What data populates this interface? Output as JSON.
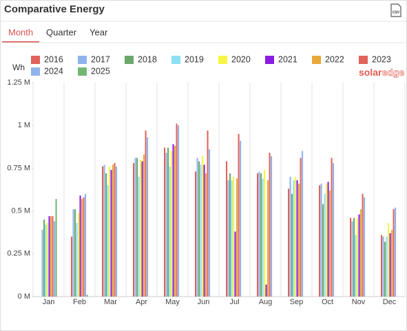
{
  "export_button": "CSV",
  "tabs": [
    "Month",
    "Quarter",
    "Year"
  ],
  "active_tab": 0,
  "logo": [
    "solar",
    "edge"
  ],
  "chart_data": {
    "type": "bar",
    "title": "Comparative Energy",
    "y_label": "Wh",
    "categories": [
      "Jan",
      "Feb",
      "Mar",
      "Apr",
      "May",
      "Jun",
      "Jul",
      "Aug",
      "Sep",
      "Oct",
      "Nov",
      "Dec"
    ],
    "series": [
      {
        "name": "2016",
        "color": "#e0635b",
        "values": [
          null,
          0.35,
          0.76,
          0.78,
          0.87,
          0.73,
          0.79,
          0.72,
          0.63,
          0.65,
          0.46,
          0.36
        ]
      },
      {
        "name": "2017",
        "color": "#8fb3eb",
        "values": [
          0.39,
          0.51,
          0.77,
          0.81,
          0.84,
          0.81,
          0.68,
          0.73,
          0.7,
          0.66,
          0.44,
          0.35
        ]
      },
      {
        "name": "2018",
        "color": "#6aa96b",
        "values": [
          0.45,
          0.51,
          0.72,
          0.81,
          0.87,
          0.79,
          0.72,
          0.72,
          0.6,
          0.54,
          0.46,
          0.32
        ]
      },
      {
        "name": "2019",
        "color": "#8ddff2",
        "values": [
          0.42,
          0.43,
          0.65,
          0.7,
          0.76,
          0.77,
          0.68,
          0.69,
          0.68,
          0.6,
          0.36,
          0.35
        ]
      },
      {
        "name": "2020",
        "color": "#f6f542",
        "values": [
          0.43,
          0.49,
          0.76,
          0.8,
          0.85,
          0.82,
          0.7,
          0.74,
          0.7,
          0.66,
          0.46,
          0.43
        ]
      },
      {
        "name": "2021",
        "color": "#8a1bdf",
        "values": [
          0.47,
          0.59,
          0.74,
          0.79,
          0.89,
          0.77,
          0.38,
          0.07,
          0.68,
          0.67,
          0.48,
          0.37
        ]
      },
      {
        "name": "2022",
        "color": "#e8a93b",
        "values": [
          0.47,
          0.57,
          0.77,
          0.83,
          0.88,
          0.72,
          0.69,
          0.68,
          0.66,
          0.62,
          0.51,
          0.39
        ]
      },
      {
        "name": "2023",
        "color": "#e0635b",
        "values": [
          0.47,
          0.58,
          0.78,
          0.97,
          1.01,
          0.97,
          0.95,
          0.84,
          0.81,
          0.81,
          0.6,
          0.51
        ]
      },
      {
        "name": "2024",
        "color": "#8fb3eb",
        "values": [
          0.44,
          0.6,
          0.76,
          0.93,
          1.0,
          0.86,
          0.91,
          0.82,
          0.85,
          0.78,
          0.58,
          0.52
        ]
      },
      {
        "name": "2025",
        "color": "#72b873",
        "values": [
          0.57,
          0.01,
          null,
          null,
          null,
          null,
          null,
          null,
          null,
          null,
          null,
          null
        ]
      }
    ],
    "ylim": [
      0,
      1.25
    ],
    "yticks": [
      {
        "value": 0,
        "label": "0 M"
      },
      {
        "value": 0.25,
        "label": "0.25 M"
      },
      {
        "value": 0.5,
        "label": "0.5 M"
      },
      {
        "value": 0.75,
        "label": "0.75 M"
      },
      {
        "value": 1,
        "label": "1 M"
      },
      {
        "value": 1.25,
        "label": "1.25 M"
      }
    ],
    "x_grid": true
  }
}
